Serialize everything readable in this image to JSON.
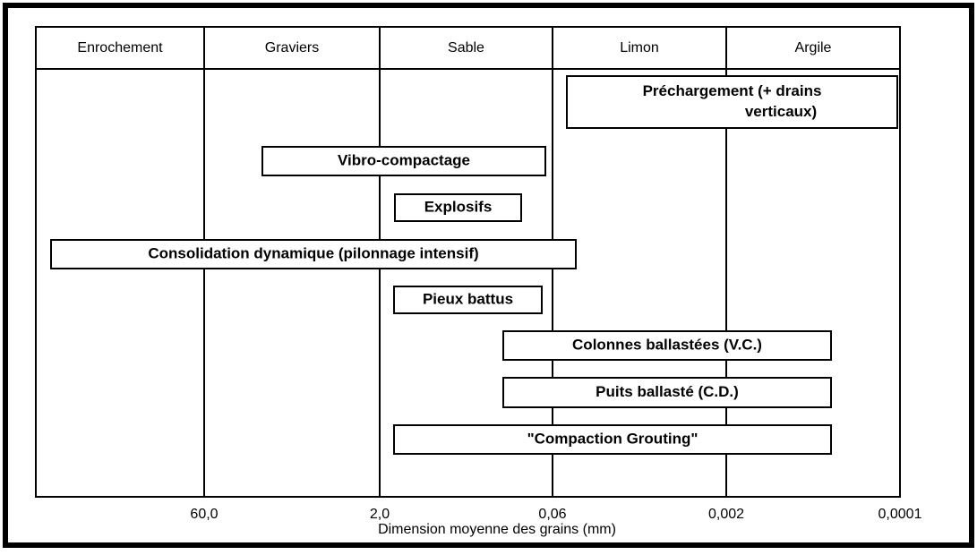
{
  "header": {
    "columns": [
      "Enrochement",
      "Graviers",
      "Sable",
      "Limon",
      "Argile"
    ]
  },
  "techniques": [
    {
      "lines": [
        "Préchargement (+ drains",
        "verticaux)"
      ]
    },
    {
      "lines": [
        "Vibro-compactage"
      ]
    },
    {
      "lines": [
        "Explosifs"
      ]
    },
    {
      "lines": [
        "Consolidation dynamique (pilonnage intensif)"
      ]
    },
    {
      "lines": [
        "Pieux battus"
      ]
    },
    {
      "lines": [
        "Colonnes ballastées (V.C.)"
      ]
    },
    {
      "lines": [
        "Puits ballasté (C.D.)"
      ]
    },
    {
      "lines": [
        "\"Compaction Grouting\""
      ]
    }
  ],
  "axis": {
    "ticks": [
      "60,0",
      "2,0",
      "0,06",
      "0,002",
      "0,0001"
    ],
    "title": "Dimension moyenne des grains (mm)"
  }
}
